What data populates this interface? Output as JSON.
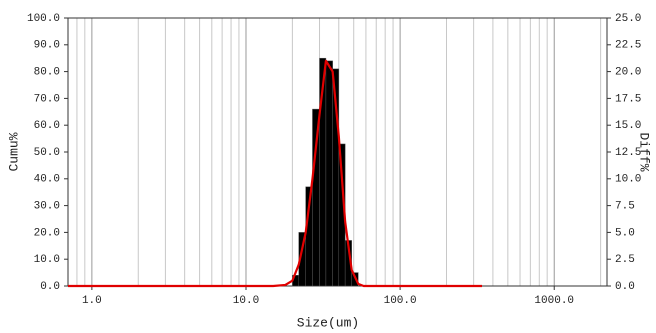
{
  "chart_data": {
    "type": "histogram",
    "x_label": "Size(um)",
    "y_label": "Cumu%",
    "y2_label": "Diff%",
    "xscale": "log",
    "xlim": [
      0.7,
      2200
    ],
    "xticks": [
      {
        "value": 1,
        "label": "1.0"
      },
      {
        "value": 10,
        "label": "10.0"
      },
      {
        "value": 100,
        "label": "100.0"
      },
      {
        "value": 1000,
        "label": "1000.0"
      }
    ],
    "xminorticks": [
      0.8,
      0.9,
      2,
      3,
      4,
      5,
      6,
      7,
      8,
      9,
      20,
      30,
      40,
      50,
      60,
      70,
      80,
      90,
      200,
      300,
      400,
      500,
      600,
      700,
      800,
      900,
      2000
    ],
    "ylim": [
      0,
      100
    ],
    "yticks": [
      {
        "value": 0,
        "label": "0.0"
      },
      {
        "value": 10,
        "label": "10.0"
      },
      {
        "value": 20,
        "label": "20.0"
      },
      {
        "value": 30,
        "label": "30.0"
      },
      {
        "value": 40,
        "label": "40.0"
      },
      {
        "value": 50,
        "label": "50.0"
      },
      {
        "value": 60,
        "label": "60.0"
      },
      {
        "value": 70,
        "label": "70.0"
      },
      {
        "value": 80,
        "label": "80.0"
      },
      {
        "value": 90,
        "label": "90.0"
      },
      {
        "value": 100,
        "label": "100.0"
      }
    ],
    "y2lim": [
      0,
      25
    ],
    "y2ticks": [
      {
        "value": 0,
        "label": "0.0"
      },
      {
        "value": 2.5,
        "label": "2.5"
      },
      {
        "value": 5,
        "label": "5.0"
      },
      {
        "value": 7.5,
        "label": "7.5"
      },
      {
        "value": 10,
        "label": "10.0"
      },
      {
        "value": 12.5,
        "label": "12.5"
      },
      {
        "value": 15,
        "label": "15.0"
      },
      {
        "value": 17.5,
        "label": "17.5"
      },
      {
        "value": 20,
        "label": "20.0"
      },
      {
        "value": 22.5,
        "label": "22.5"
      },
      {
        "value": 25,
        "label": "25.0"
      }
    ],
    "grid": true,
    "histogram": {
      "axis": "y2",
      "color": "#000000",
      "bins": [
        20,
        22,
        24.4,
        27,
        30,
        33,
        36.5,
        40,
        44,
        48.5,
        53.5
      ],
      "values": [
        1,
        5,
        9.25,
        16.5,
        21.25,
        21,
        20.25,
        13.25,
        4.25,
        1.25
      ]
    },
    "series": [
      {
        "color": "#e00000",
        "axis": "y2",
        "x": [
          0.7,
          15,
          18,
          20,
          22,
          24.4,
          27,
          30,
          33,
          36.5,
          40,
          44,
          48.5,
          53.5,
          58,
          340
        ],
        "values": [
          0,
          0,
          0.1,
          0.5,
          2,
          5,
          10,
          16,
          21,
          20,
          14,
          6,
          1.5,
          0.2,
          0,
          0
        ]
      }
    ]
  }
}
